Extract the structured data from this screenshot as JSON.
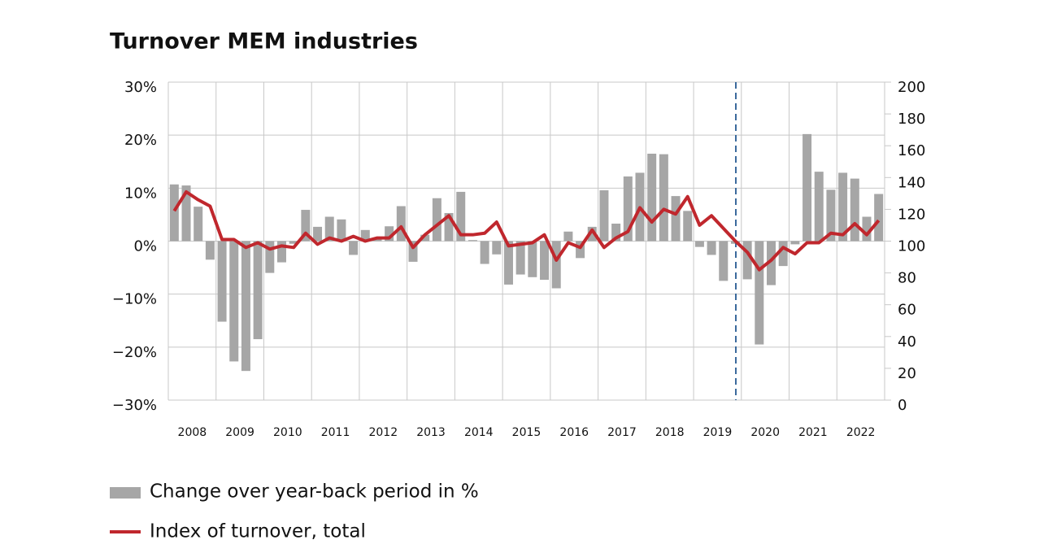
{
  "chart_data": {
    "type": "bar_line",
    "title": "Turnover MEM industries",
    "years": [
      "2008",
      "2009",
      "2010",
      "2011",
      "2012",
      "2013",
      "2014",
      "2015",
      "2016",
      "2017",
      "2018",
      "2019",
      "2020",
      "2021",
      "2022"
    ],
    "series": [
      {
        "name": "Change over year-back period in %",
        "type": "bar",
        "color": "#a6a6a6",
        "values": [
          10.7,
          10.5,
          6.5,
          -3.5,
          -15.2,
          -22.7,
          -24.5,
          -18.5,
          -6,
          -4,
          -0.5,
          5.9,
          2.7,
          4.6,
          4.1,
          -2.6,
          2.1,
          0.5,
          2.8,
          6.6,
          -3.9,
          1.2,
          8.1,
          5.3,
          9.3,
          0.2,
          -4.3,
          -2.5,
          -8.2,
          -6.3,
          -6.8,
          -7.3,
          -8.9,
          1.8,
          -3.2,
          2.7,
          9.6,
          3.3,
          12.2,
          12.9,
          16.5,
          16.4,
          8.5,
          5.7,
          -1.1,
          -2.6,
          -7.5,
          -0.5,
          -7.2,
          -19.5,
          -8.3,
          -4.7,
          -0.6,
          20.2,
          13.1,
          9.7,
          12.9,
          11.8,
          4.6,
          8.9
        ]
      },
      {
        "name": "Index of turnover, total",
        "type": "line",
        "axis": "y2",
        "color": "#c0272d",
        "values": [
          119,
          131,
          126,
          122,
          101,
          101,
          96,
          99,
          95,
          97,
          96,
          105,
          98,
          102,
          100,
          103,
          100,
          102,
          102,
          109,
          96,
          104,
          110,
          116,
          104,
          104,
          105,
          112,
          97,
          98,
          99,
          104,
          88,
          99,
          96,
          107,
          96,
          102,
          106,
          121,
          112,
          120,
          117,
          128,
          110,
          116,
          108,
          100,
          93,
          82,
          88,
          96,
          92,
          99,
          99,
          105,
          104,
          111,
          104,
          113
        ]
      }
    ],
    "ylim": [
      -30,
      30
    ],
    "yticks": [
      {
        "value": 30,
        "label": "30%"
      },
      {
        "value": 20,
        "label": "20%"
      },
      {
        "value": 10,
        "label": "10%"
      },
      {
        "value": 0,
        "label": "0%"
      },
      {
        "value": -10,
        "label": "−10%"
      },
      {
        "value": -20,
        "label": "−20%"
      },
      {
        "value": -30,
        "label": "−30%"
      }
    ],
    "y2lim": [
      0,
      200
    ],
    "y2ticks": [
      200,
      180,
      160,
      140,
      120,
      100,
      80,
      60,
      40,
      20,
      0
    ],
    "grid": true
  }
}
